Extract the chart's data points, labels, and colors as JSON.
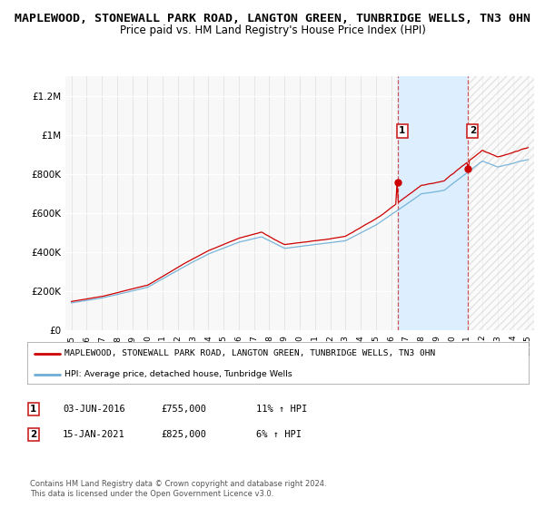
{
  "title": "MAPLEWOOD, STONEWALL PARK ROAD, LANGTON GREEN, TUNBRIDGE WELLS, TN3 0HN",
  "subtitle": "Price paid vs. HM Land Registry's House Price Index (HPI)",
  "ylim": [
    0,
    1300000
  ],
  "yticks": [
    0,
    200000,
    400000,
    600000,
    800000,
    1000000,
    1200000
  ],
  "ytick_labels": [
    "£0",
    "£200K",
    "£400K",
    "£600K",
    "£800K",
    "£1M",
    "£1.2M"
  ],
  "hpi_color": "#6baed6",
  "price_color": "#cc0000",
  "sale1_price": 755000,
  "sale1_hpi_pct": "11%",
  "sale2_price": 825000,
  "sale2_hpi_pct": "6%",
  "sale1_x": 2016.42,
  "sale2_x": 2021.04,
  "sale1_date": "03-JUN-2016",
  "sale2_date": "15-JAN-2021",
  "legend_label_price": "MAPLEWOOD, STONEWALL PARK ROAD, LANGTON GREEN, TUNBRIDGE WELLS, TN3 0HN",
  "legend_label_hpi": "HPI: Average price, detached house, Tunbridge Wells",
  "footnote": "Contains HM Land Registry data © Crown copyright and database right 2024.\nThis data is licensed under the Open Government Licence v3.0.",
  "background_color": "#ffffff",
  "plot_bg_color": "#f8f8f8",
  "shaded_region_color": "#ddeeff",
  "title_fontsize": 9.5,
  "subtitle_fontsize": 8.5
}
